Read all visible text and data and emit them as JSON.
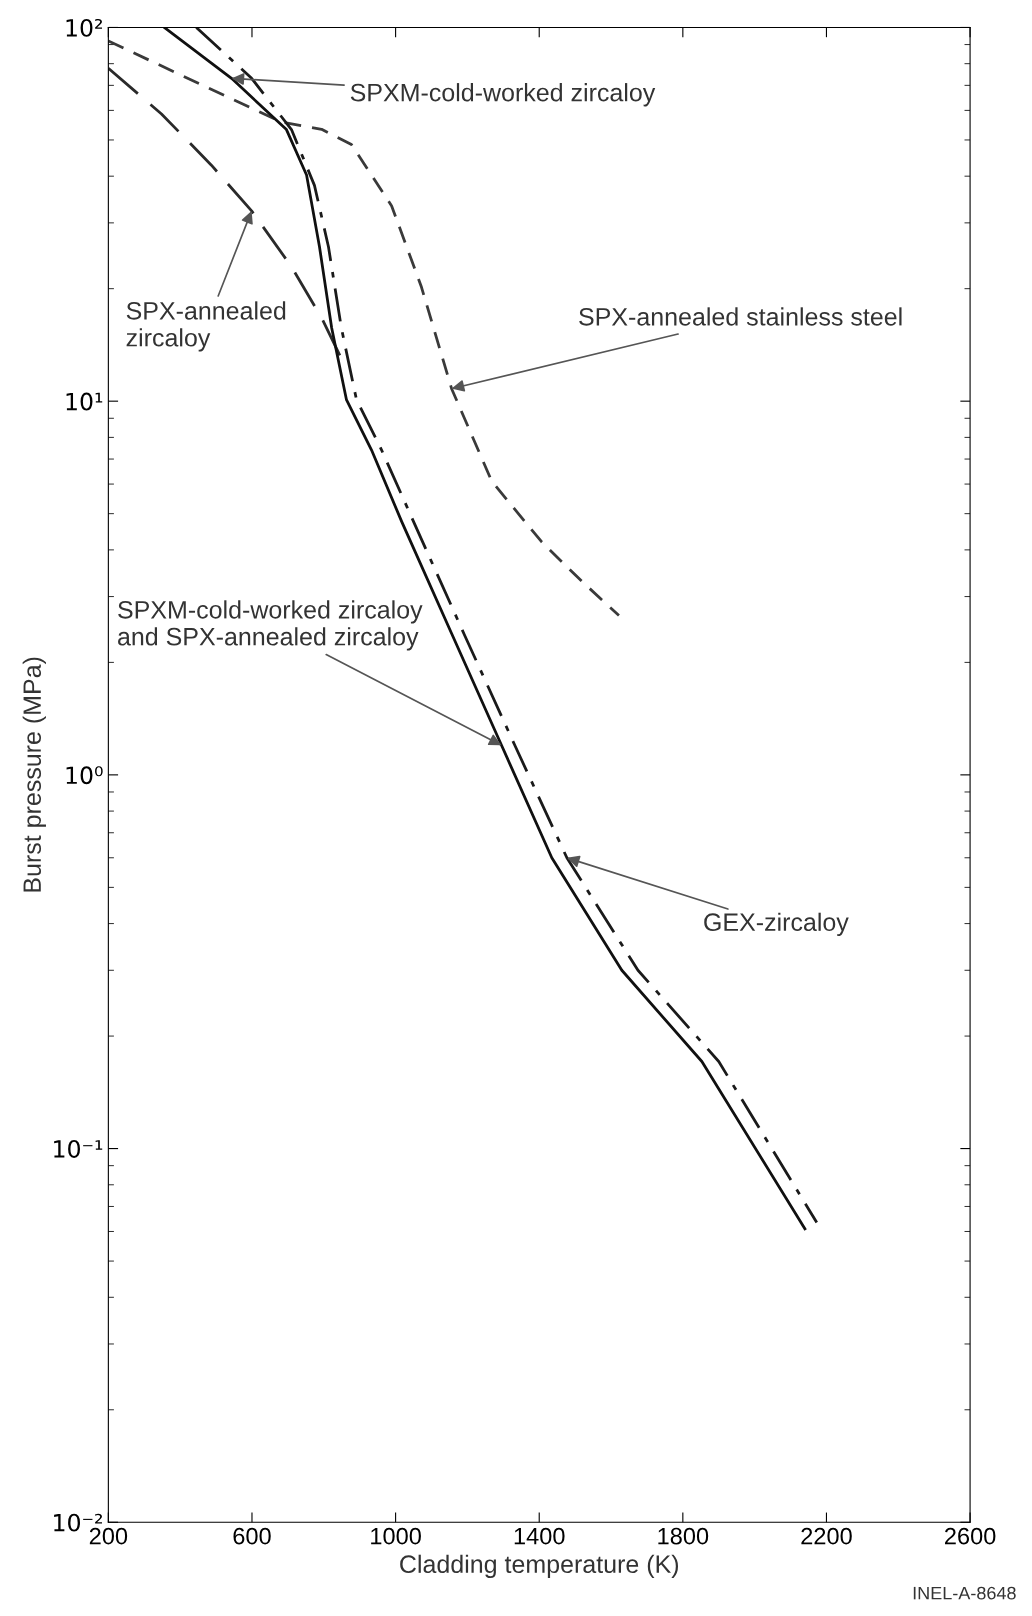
{
  "chart_data": {
    "type": "line",
    "xlabel": "Cladding temperature (K)",
    "ylabel": "Burst pressure (MPa)",
    "log": "y",
    "grid": false,
    "legend": false,
    "marker": "none",
    "xlim": [
      200,
      2600
    ],
    "xticks": [
      200,
      600,
      1000,
      1400,
      1800,
      2200,
      2600
    ],
    "ylim": [
      0.01,
      100
    ],
    "yticks": [
      {
        "value": 0.01,
        "label": "10⁻²"
      },
      {
        "value": 0.02,
        "label": null
      },
      {
        "value": 0.03,
        "label": null
      },
      {
        "value": 0.04,
        "label": null
      },
      {
        "value": 0.05,
        "label": null
      },
      {
        "value": 0.06,
        "label": null
      },
      {
        "value": 0.07,
        "label": null
      },
      {
        "value": 0.08,
        "label": null
      },
      {
        "value": 0.09,
        "label": null
      },
      {
        "value": 0.1,
        "label": "10⁻¹"
      },
      {
        "value": 0.2,
        "label": null
      },
      {
        "value": 0.3,
        "label": null
      },
      {
        "value": 0.4,
        "label": null
      },
      {
        "value": 0.5,
        "label": null
      },
      {
        "value": 0.6,
        "label": null
      },
      {
        "value": 0.7,
        "label": null
      },
      {
        "value": 0.8,
        "label": null
      },
      {
        "value": 0.9,
        "label": null
      },
      {
        "value": 1,
        "label": "10⁰"
      },
      {
        "value": 2,
        "label": null
      },
      {
        "value": 3,
        "label": null
      },
      {
        "value": 4,
        "label": null
      },
      {
        "value": 5,
        "label": null
      },
      {
        "value": 6,
        "label": null
      },
      {
        "value": 7,
        "label": null
      },
      {
        "value": 8,
        "label": null
      },
      {
        "value": 9,
        "label": null
      },
      {
        "value": 10,
        "label": "10¹"
      },
      {
        "value": 20,
        "label": null
      },
      {
        "value": 30,
        "label": null
      },
      {
        "value": 40,
        "label": null
      },
      {
        "value": 50,
        "label": null
      },
      {
        "value": 60,
        "label": null
      },
      {
        "value": 70,
        "label": null
      },
      {
        "value": 80,
        "label": null
      },
      {
        "value": 90,
        "label": null
      },
      {
        "value": 100,
        "label": "10²"
      }
    ],
    "series": [
      {
        "color": "#3a3a3a",
        "line_style": "dashed",
        "x": [
          200,
          682,
          794,
          877,
          989,
          1072,
          1156,
          1268,
          1407,
          1518,
          1622
        ],
        "values": [
          92,
          55.8,
          53.4,
          48.6,
          33.3,
          20.2,
          10.8,
          6.1,
          4.2,
          3.3,
          2.67
        ]
      },
      {
        "color": "#2a2a2a",
        "line_style": "longdash",
        "x": [
          200,
          348,
          487,
          599,
          710,
          794,
          849
        ],
        "values": [
          77.8,
          58.7,
          42.8,
          32.3,
          22.9,
          16.7,
          13.0
        ]
      },
      {
        "color": "#101010",
        "line_style": "solid",
        "x": [
          356,
          543,
          696,
          752,
          788,
          822,
          863,
          933,
          1017,
          1156,
          1295,
          1435,
          1630,
          1853,
          2140
        ],
        "values": [
          100,
          73.1,
          53.3,
          40.3,
          25.9,
          15.7,
          10.1,
          7.4,
          4.76,
          2.39,
          1.2,
          0.6,
          0.3,
          0.171,
          0.061
        ]
      },
      {
        "color": "#1a1a1a",
        "line_style": "dashdot",
        "x": [
          445,
          599,
          710,
          774,
          813,
          849,
          891,
          961,
          1050,
          1190,
          1332,
          1477,
          1675,
          1900,
          2173
        ],
        "values": [
          100,
          73.1,
          53.3,
          37.8,
          25.9,
          15.7,
          10.1,
          7.4,
          4.76,
          2.39,
          1.2,
          0.6,
          0.3,
          0.171,
          0.0634
        ]
      }
    ],
    "annotations": [
      {
        "text": "SPXM-cold-worked zircaloy",
        "x": 543,
        "y": 73.1
      },
      {
        "text": "SPX-annealed\nzircaloy",
        "x": 599,
        "y": 32.3
      },
      {
        "text": "SPX-annealed stainless steel",
        "x": 1156,
        "y": 10.8
      },
      {
        "text": "SPXM-cold-worked zircaloy\nand SPX-annealed zircaloy",
        "x": 1295,
        "y": 1.2
      },
      {
        "text": "GEX-zircaloy",
        "x": 1477,
        "y": 0.6
      },
      "INEL-A-8648"
    ]
  }
}
